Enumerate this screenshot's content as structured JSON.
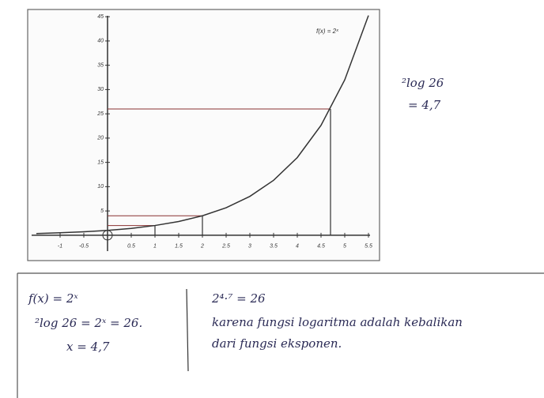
{
  "chart_data": {
    "type": "line",
    "title": "f(x) = 2ˣ",
    "x": [
      -1.5,
      -1,
      -0.5,
      0,
      0.5,
      1,
      1.5,
      2,
      2.5,
      3,
      3.5,
      4,
      4.5,
      5,
      5.5
    ],
    "series": [
      {
        "name": "f(x) = 2ˣ",
        "color": "#333333",
        "values": [
          0.35,
          0.5,
          0.71,
          1,
          1.41,
          2,
          2.83,
          4,
          5.66,
          8,
          11.31,
          16,
          22.63,
          32,
          45.25
        ]
      }
    ],
    "xlim": [
      -1.6,
      5.7
    ],
    "ylim": [
      -4.9,
      46
    ],
    "xticks": [
      -1,
      -0.5,
      0.5,
      1,
      1.5,
      2,
      2.5,
      3,
      3.5,
      4,
      4.5,
      5,
      5.5
    ],
    "yticks": [
      5,
      10,
      15,
      20,
      25,
      30,
      35,
      40,
      45
    ],
    "guides": [
      {
        "x": 4.7,
        "y": 26
      },
      {
        "x": 2,
        "y": 4
      },
      {
        "x": 1,
        "y": 2
      }
    ]
  },
  "side_note": [
    "²log 26",
    "= 4,7"
  ],
  "notes": {
    "left": [
      "f(x) = 2ˣ",
      "²log 26 = 2ˣ = 26.",
      "x = 4,7"
    ],
    "right": [
      "2⁴·⁷ = 26",
      "karena fungsi logaritma adalah kebalikan",
      "dari fungsi eksponen."
    ]
  }
}
